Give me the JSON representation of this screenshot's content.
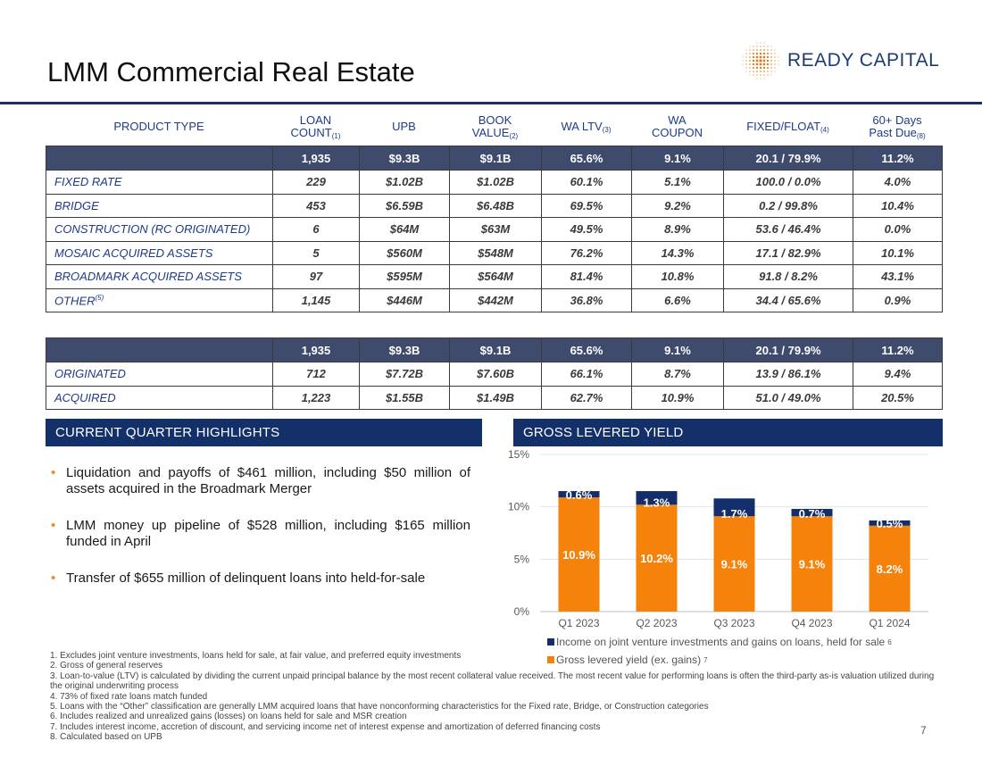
{
  "title": "LMM Commercial Real Estate",
  "logo": {
    "text": "READY CAPITAL"
  },
  "table_headers": [
    {
      "text": "PRODUCT TYPE",
      "sup": ""
    },
    {
      "text": "LOAN COUNT",
      "sup": "(1)"
    },
    {
      "text": "UPB",
      "sup": ""
    },
    {
      "text": "BOOK VALUE",
      "sup": "(2)"
    },
    {
      "text": "WA LTV",
      "sup": "(3)"
    },
    {
      "text": "WA COUPON",
      "sup": ""
    },
    {
      "text": "FIXED/FLOAT",
      "sup": "(4)"
    },
    {
      "text": "60+ Days Past Due",
      "sup": "(8)"
    }
  ],
  "table1": {
    "total": [
      "",
      "1,935",
      "$9.3B",
      "$9.1B",
      "65.6%",
      "9.1%",
      "20.1 / 79.9%",
      "11.2%"
    ],
    "rows": [
      {
        "label": "FIXED RATE",
        "sup": "",
        "values": [
          "229",
          "$1.02B",
          "$1.02B",
          "60.1%",
          "5.1%",
          "100.0 / 0.0%",
          "4.0%"
        ]
      },
      {
        "label": "BRIDGE",
        "sup": "",
        "values": [
          "453",
          "$6.59B",
          "$6.48B",
          "69.5%",
          "9.2%",
          "0.2 / 99.8%",
          "10.4%"
        ]
      },
      {
        "label": "CONSTRUCTION (RC ORIGINATED)",
        "sup": "",
        "values": [
          "6",
          "$64M",
          "$63M",
          "49.5%",
          "8.9%",
          "53.6 / 46.4%",
          "0.0%"
        ]
      },
      {
        "label": "MOSAIC ACQUIRED ASSETS",
        "sup": "",
        "values": [
          "5",
          "$560M",
          "$548M",
          "76.2%",
          "14.3%",
          "17.1 / 82.9%",
          "10.1%"
        ]
      },
      {
        "label": "BROADMARK ACQUIRED ASSETS",
        "sup": "",
        "values": [
          "97",
          "$595M",
          "$564M",
          "81.4%",
          "10.8%",
          "91.8 / 8.2%",
          "43.1%"
        ]
      },
      {
        "label": "OTHER",
        "sup": "(5)",
        "values": [
          "1,145",
          "$446M",
          "$442M",
          "36.8%",
          "6.6%",
          "34.4 / 65.6%",
          "0.9%"
        ]
      }
    ]
  },
  "table2": {
    "total": [
      "",
      "1,935",
      "$9.3B",
      "$9.1B",
      "65.6%",
      "9.1%",
      "20.1 / 79.9%",
      "11.2%"
    ],
    "rows": [
      {
        "label": "ORIGINATED",
        "sup": "",
        "values": [
          "712",
          "$7.72B",
          "$7.60B",
          "66.1%",
          "8.7%",
          "13.9 / 86.1%",
          "9.4%"
        ]
      },
      {
        "label": "ACQUIRED",
        "sup": "",
        "values": [
          "1,223",
          "$1.55B",
          "$1.49B",
          "62.7%",
          "10.9%",
          "51.0 / 49.0%",
          "20.5%"
        ]
      }
    ]
  },
  "highlights": {
    "heading": "CURRENT QUARTER HIGHLIGHTS",
    "bullets": [
      "Liquidation and payoffs of $461 million, including $50 million of assets acquired in the Broadmark Merger",
      "LMM money up pipeline of $528 million, including $165 million funded in April",
      "Transfer of $655 million of delinquent loans into held-for-sale"
    ]
  },
  "chart_heading": "GROSS LEVERED YIELD",
  "chart_data": {
    "type": "bar",
    "stacked": true,
    "categories": [
      "Q1 2023",
      "Q2 2023",
      "Q3 2023",
      "Q4 2023",
      "Q1 2024"
    ],
    "series": [
      {
        "name": "Gross levered yield (ex. gains)",
        "sup": "7",
        "color": "#f5820a",
        "values": [
          10.9,
          10.2,
          9.1,
          9.1,
          8.2
        ],
        "labels": [
          "10.9%",
          "10.2%",
          "9.1%",
          "9.1%",
          "8.2%"
        ]
      },
      {
        "name": "Income on joint venture investments and gains on loans, held for sale",
        "sup": "6",
        "color": "#142e6b",
        "values": [
          0.6,
          1.3,
          1.7,
          0.7,
          0.5
        ],
        "labels": [
          "0.6%",
          "1.3%",
          "1.7%",
          "0.7%",
          "0.5%"
        ]
      }
    ],
    "ylim": [
      0,
      15
    ],
    "yticks": [
      0,
      5,
      10,
      15
    ],
    "ytick_labels": [
      "0%",
      "5%",
      "10%",
      "15%"
    ],
    "legend_position": "bottom"
  },
  "footnotes": [
    "1. Excludes joint venture investments, loans held for sale, at fair value, and preferred equity investments",
    "2. Gross of general reserves",
    "3. Loan-to-value (LTV) is calculated by dividing the current unpaid principal balance by the most recent collateral value received. The most recent value for performing loans is often the third-party as-is valuation utilized during the original underwriting process",
    "4. 73% of fixed rate loans match funded",
    "5. Loans with the “Other” classification are generally LMM acquired loans that have nonconforming characteristics for the Fixed rate, Bridge, or Construction categories",
    "6. Includes realized and unrealized gains (losses) on loans held for sale and MSR creation",
    "7. Includes interest income, accretion of discount, and servicing income net of interest expense and amortization of deferred financing costs",
    "8. Calculated based on UPB"
  ],
  "page_number": "7"
}
